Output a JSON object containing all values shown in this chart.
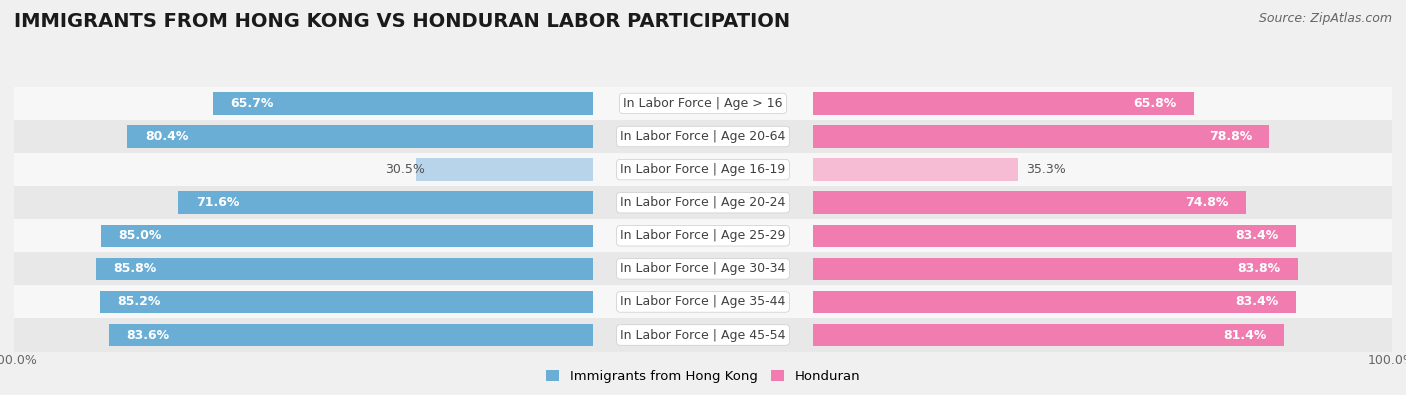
{
  "title": "IMMIGRANTS FROM HONG KONG VS HONDURAN LABOR PARTICIPATION",
  "source": "Source: ZipAtlas.com",
  "categories": [
    "In Labor Force | Age > 16",
    "In Labor Force | Age 20-64",
    "In Labor Force | Age 16-19",
    "In Labor Force | Age 20-24",
    "In Labor Force | Age 25-29",
    "In Labor Force | Age 30-34",
    "In Labor Force | Age 35-44",
    "In Labor Force | Age 45-54"
  ],
  "hk_values": [
    65.7,
    80.4,
    30.5,
    71.6,
    85.0,
    85.8,
    85.2,
    83.6
  ],
  "hon_values": [
    65.8,
    78.8,
    35.3,
    74.8,
    83.4,
    83.8,
    83.4,
    81.4
  ],
  "hk_labels": [
    "65.7%",
    "80.4%",
    "30.5%",
    "71.6%",
    "85.0%",
    "85.8%",
    "85.2%",
    "83.6%"
  ],
  "hon_labels": [
    "65.8%",
    "78.8%",
    "35.3%",
    "74.8%",
    "83.4%",
    "83.8%",
    "83.4%",
    "81.4%"
  ],
  "hk_color": "#6aaed6",
  "hk_color_light": "#b8d4ea",
  "hon_color": "#f07cb0",
  "hon_color_light": "#f5bcd4",
  "bar_height": 0.68,
  "max_val": 100.0,
  "bg_color": "#f0f0f0",
  "row_bg_light": "#f7f7f7",
  "row_bg_dark": "#e8e8e8",
  "legend_hk_label": "Immigrants from Hong Kong",
  "legend_hon_label": "Honduran",
  "title_fontsize": 14,
  "source_fontsize": 9,
  "label_fontsize": 9,
  "cat_fontsize": 9
}
